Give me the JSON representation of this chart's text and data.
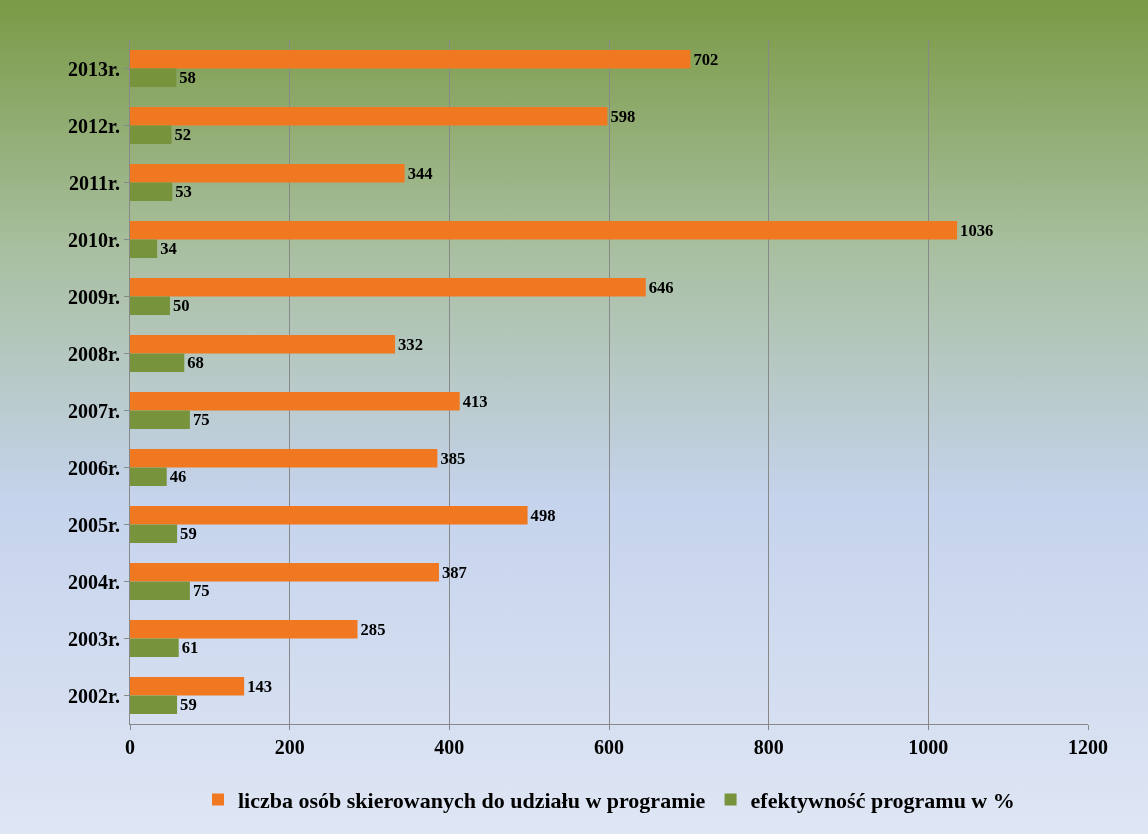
{
  "chart_data": {
    "type": "bar",
    "orientation": "horizontal",
    "categories": [
      "2013r.",
      "2012r.",
      "2011r.",
      "2010r.",
      "2009r.",
      "2008r.",
      "2007r.",
      "2006r.",
      "2005r.",
      "2004r.",
      "2003r.",
      "2002r."
    ],
    "series": [
      {
        "name": "liczba osób skierowanych do udziału w programie",
        "color": "#f07820",
        "values": [
          702,
          598,
          344,
          1036,
          646,
          332,
          413,
          385,
          498,
          387,
          285,
          143
        ]
      },
      {
        "name": "efektywność programu w %",
        "color": "#77933c",
        "values": [
          58,
          52,
          53,
          34,
          50,
          68,
          75,
          46,
          59,
          75,
          61,
          59
        ]
      }
    ],
    "xlim": [
      0,
      1200
    ],
    "xticks": [
      0,
      200,
      400,
      600,
      800,
      1000,
      1200
    ],
    "grid": "x",
    "legend": "bottom",
    "data_labels": true
  }
}
